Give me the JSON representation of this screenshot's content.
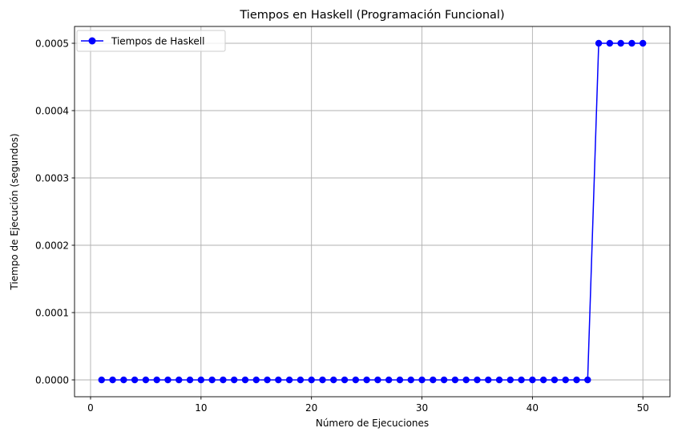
{
  "chart_data": {
    "type": "line",
    "title": "Tiempos en Haskell (Programación Funcional)",
    "xlabel": "Número de Ejecuciones",
    "ylabel": "Tiempo de Ejecución (segundos)",
    "xlim": [
      -1.45,
      52.45
    ],
    "ylim": [
      -2.5e-05,
      0.000525
    ],
    "xticks": [
      0,
      10,
      20,
      30,
      40,
      50
    ],
    "xtick_labels": [
      "0",
      "10",
      "20",
      "30",
      "40",
      "50"
    ],
    "yticks": [
      0,
      0.0001,
      0.0002,
      0.0003,
      0.0004,
      0.0005
    ],
    "ytick_labels": [
      "0.0000",
      "0.0001",
      "0.0002",
      "0.0003",
      "0.0004",
      "0.0005"
    ],
    "grid": true,
    "legend_position": "upper-left",
    "series": [
      {
        "name": "Tiempos de Haskell",
        "color": "#0000ff",
        "marker": "circle",
        "x": [
          1,
          2,
          3,
          4,
          5,
          6,
          7,
          8,
          9,
          10,
          11,
          12,
          13,
          14,
          15,
          16,
          17,
          18,
          19,
          20,
          21,
          22,
          23,
          24,
          25,
          26,
          27,
          28,
          29,
          30,
          31,
          32,
          33,
          34,
          35,
          36,
          37,
          38,
          39,
          40,
          41,
          42,
          43,
          44,
          45,
          46,
          47,
          48,
          49,
          50
        ],
        "y": [
          0,
          0,
          0,
          0,
          0,
          0,
          0,
          0,
          0,
          0,
          0,
          0,
          0,
          0,
          0,
          0,
          0,
          0,
          0,
          0,
          0,
          0,
          0,
          0,
          0,
          0,
          0,
          0,
          0,
          0,
          0,
          0,
          0,
          0,
          0,
          0,
          0,
          0,
          0,
          0,
          0,
          0,
          0,
          0,
          0,
          0.0005,
          0.0005,
          0.0005,
          0.0005,
          0.0005
        ]
      }
    ]
  }
}
